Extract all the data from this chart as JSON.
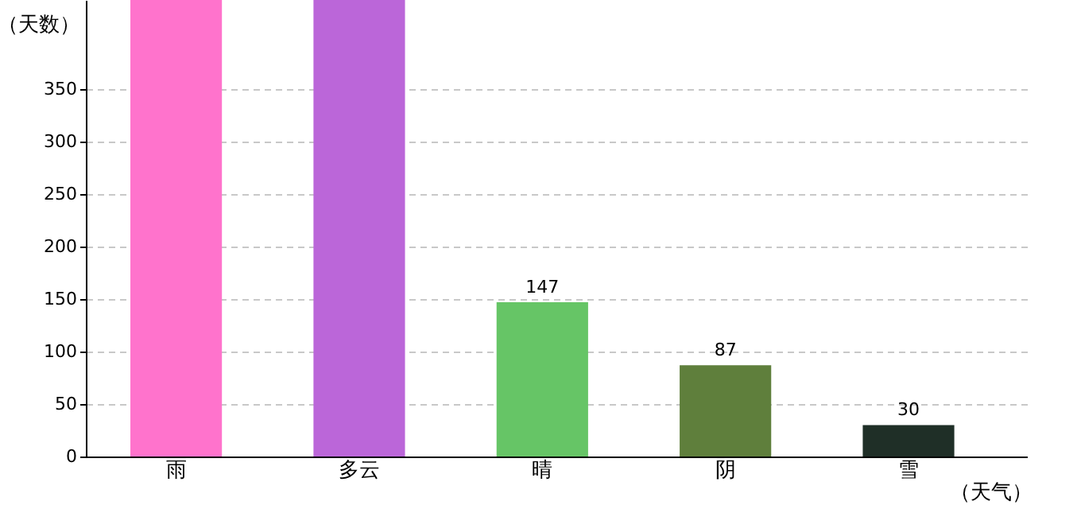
{
  "chart_data": {
    "type": "bar",
    "xlabel": "（天气）",
    "ylabel": "（天数）",
    "categories": [
      "雨",
      "多云",
      "晴",
      "阴",
      "雪"
    ],
    "values": [
      435,
      435,
      147,
      87,
      30
    ],
    "colors": [
      "#ff73cc",
      "#bb66d9",
      "#66c566",
      "#5f7f3c",
      "#1f2f27"
    ],
    "value_labels": [
      null,
      null,
      "147",
      "87",
      "30"
    ],
    "ylim": [
      0,
      435
    ],
    "yticks": [
      0,
      50,
      100,
      150,
      200,
      250,
      300,
      350
    ],
    "grid": "y",
    "legend": false
  }
}
